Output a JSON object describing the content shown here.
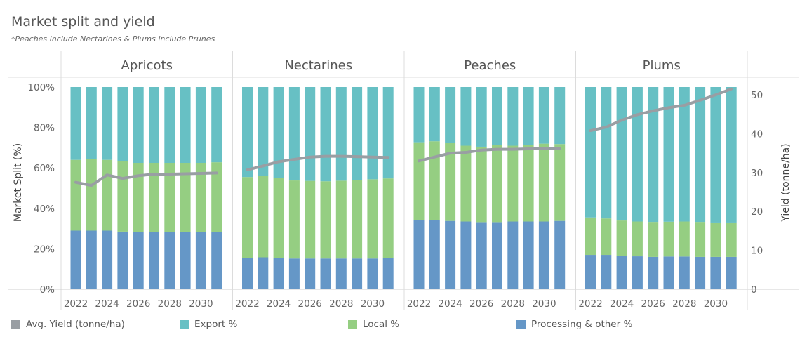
{
  "header": {
    "title": "Market split and yield",
    "subtitle": "*Peaches include Nectarines & Plums include Prunes"
  },
  "legend": [
    {
      "label": "Avg. Yield (tonne/ha)",
      "color": "#999ea3",
      "key": "yield"
    },
    {
      "label": "Export %",
      "color": "#67c0c4",
      "key": "export"
    },
    {
      "label": "Local %",
      "color": "#95ce82",
      "key": "local"
    },
    {
      "label": "Processing & other %",
      "color": "#6597c7",
      "key": "processing"
    }
  ],
  "chart_data": {
    "type": "bar",
    "stacked": true,
    "ylabel": "Market Split (%)",
    "y2label": "Yield (tonne/ha)",
    "ylim": [
      0,
      100
    ],
    "y2lim": [
      0,
      52
    ],
    "yticks": [
      "0%",
      "20%",
      "40%",
      "60%",
      "80%",
      "100%"
    ],
    "y2ticks": [
      0,
      10,
      20,
      30,
      40,
      50
    ],
    "categories": [
      2022,
      2023,
      2024,
      2025,
      2026,
      2027,
      2028,
      2029,
      2030,
      2031
    ],
    "xtick_labels": [
      "2022",
      "2024",
      "2026",
      "2028",
      "2030"
    ],
    "colors": {
      "export": "#67c0c4",
      "local": "#95ce82",
      "processing": "#6597c7",
      "yield": "#999ea3"
    },
    "panels": [
      {
        "name": "Apricots",
        "processing": [
          29,
          29,
          29,
          28.5,
          28.3,
          28.3,
          28.3,
          28.3,
          28.3,
          28.3
        ],
        "local": [
          35,
          35.5,
          35,
          35,
          34.2,
          34.2,
          34.2,
          34.2,
          34.2,
          34.5
        ],
        "export": [
          36,
          35.5,
          36,
          36.5,
          37.5,
          37.5,
          37.5,
          37.5,
          37.5,
          37.2
        ],
        "yield": [
          27.5,
          26.7,
          29.4,
          28.5,
          29.2,
          29.6,
          29.6,
          29.7,
          29.8,
          29.9
        ]
      },
      {
        "name": "Nectarines",
        "processing": [
          15.5,
          15.8,
          15.5,
          15.2,
          15.2,
          15.2,
          15.2,
          15.2,
          15.2,
          15.5
        ],
        "local": [
          40,
          40.2,
          39.7,
          38.6,
          38.4,
          38.2,
          38.5,
          38.7,
          39.2,
          39.3
        ],
        "export": [
          44.5,
          44,
          44.8,
          46.2,
          46.4,
          46.6,
          46.3,
          46.1,
          45.6,
          45.2
        ],
        "yield": [
          30.7,
          31.7,
          32.8,
          33.4,
          34.0,
          34.2,
          34.2,
          34.1,
          34.0,
          33.9
        ]
      },
      {
        "name": "Peaches",
        "processing": [
          34.2,
          34.2,
          33.8,
          33.5,
          33.2,
          33.2,
          33.5,
          33.5,
          33.5,
          33.8
        ],
        "local": [
          38.5,
          39,
          38.5,
          37.5,
          37.3,
          38,
          37.5,
          38,
          38.5,
          38
        ],
        "export": [
          27.3,
          26.8,
          27.7,
          29,
          29.5,
          28.8,
          29,
          28.5,
          28,
          28.2
        ],
        "yield": [
          33.0,
          34.0,
          35.0,
          35.2,
          35.8,
          36.0,
          36.0,
          36.1,
          36.1,
          36.2
        ]
      },
      {
        "name": "Plums",
        "processing": [
          17,
          17,
          16.5,
          16.3,
          16,
          16.2,
          16.2,
          16,
          16,
          16
        ],
        "local": [
          18.5,
          18,
          17.5,
          17.2,
          17.3,
          17.2,
          17.3,
          17.3,
          17,
          17
        ],
        "export": [
          64.5,
          65,
          66,
          66.5,
          66.7,
          66.6,
          66.5,
          66.7,
          67,
          67
        ],
        "yield": [
          40.8,
          41.7,
          43.5,
          44.9,
          45.9,
          46.7,
          47.3,
          48.6,
          50.0,
          51.5
        ]
      }
    ]
  }
}
